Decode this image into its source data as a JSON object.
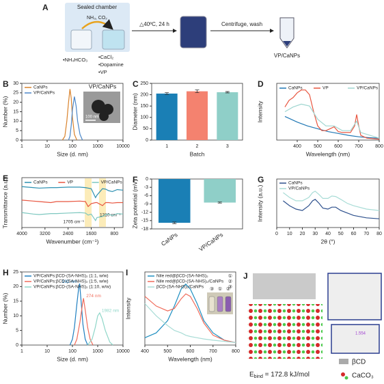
{
  "schematic": {
    "label": "A",
    "chamber_title": "Sealed chamber",
    "gas": "NH₃, CO₂",
    "left_reagents": [
      "•NH₄HCO₃"
    ],
    "right_reagents": [
      "•CaCl₂",
      "•Dopamine",
      "•VP"
    ],
    "step1": "△40ºC, 24 h",
    "step2": "Centrifuge, wash",
    "product": "VP/CaNPs"
  },
  "chart_data": [
    {
      "type": "line",
      "label": "B",
      "xscale": "log",
      "xlim": [
        1,
        10000
      ],
      "xticks": [
        1,
        10,
        100,
        1000,
        10000
      ],
      "ylim": [
        0,
        30
      ],
      "yticks": [
        0,
        5,
        10,
        15,
        20,
        25,
        30
      ],
      "xlabel": "Size (d. nm)",
      "ylabel": "Number (%)",
      "legend": "upper left",
      "inset_title": "VP/CaNPs",
      "scale_bar": "100 nm",
      "series": [
        {
          "name": "CaNPs",
          "color": "#d9822b",
          "x": [
            40,
            50,
            60,
            70,
            80,
            90,
            100,
            120,
            150
          ],
          "values": [
            0,
            2,
            10,
            20,
            27,
            22,
            12,
            3,
            0
          ]
        },
        {
          "name": "VP/CaNPs",
          "color": "#4a86c8",
          "x": [
            70,
            80,
            90,
            100,
            120,
            140,
            160,
            200,
            250
          ],
          "values": [
            0,
            2,
            8,
            16,
            23,
            18,
            10,
            3,
            0
          ]
        }
      ]
    },
    {
      "type": "bar",
      "label": "C",
      "categories": [
        "1",
        "2",
        "3"
      ],
      "values": [
        205,
        215,
        211
      ],
      "errors": [
        4,
        6,
        3
      ],
      "colors": [
        "#1a7fb5",
        "#f4826f",
        "#8fcfc8"
      ],
      "ylim": [
        0,
        250
      ],
      "yticks": [
        0,
        50,
        100,
        150,
        200,
        250
      ],
      "xlabel": "Batch",
      "ylabel": "Diameter (nm)"
    },
    {
      "type": "line",
      "label": "D",
      "xlim": [
        300,
        800
      ],
      "xticks": [
        400,
        500,
        600,
        700,
        800
      ],
      "ylim": [
        0,
        0.6
      ],
      "xlabel": "Wavelength (nm)",
      "ylabel": "Intensity",
      "legend": "upper center",
      "series": [
        {
          "name": "CaNPs",
          "color": "#1f77b4",
          "x": [
            340,
            400,
            450,
            500,
            550,
            600,
            650,
            700,
            750,
            800
          ],
          "values": [
            0.25,
            0.19,
            0.15,
            0.12,
            0.09,
            0.07,
            0.05,
            0.035,
            0.025,
            0.02
          ]
        },
        {
          "name": "VP",
          "color": "#e8553f",
          "x": [
            340,
            360,
            380,
            400,
            420,
            440,
            460,
            480,
            500,
            520,
            540,
            560,
            580,
            600,
            620,
            640,
            660,
            680,
            690,
            700,
            710,
            740,
            800
          ],
          "values": [
            0.35,
            0.42,
            0.45,
            0.5,
            0.53,
            0.53,
            0.48,
            0.3,
            0.15,
            0.1,
            0.1,
            0.12,
            0.14,
            0.09,
            0.08,
            0.08,
            0.08,
            0.15,
            0.27,
            0.15,
            0.05,
            0.02,
            0.01
          ]
        },
        {
          "name": "VP/CaNPs",
          "color": "#9fd6d0",
          "x": [
            340,
            380,
            420,
            460,
            500,
            540,
            580,
            620,
            660,
            690,
            710,
            800
          ],
          "values": [
            0.3,
            0.35,
            0.38,
            0.36,
            0.22,
            0.15,
            0.15,
            0.1,
            0.1,
            0.2,
            0.08,
            0.02
          ]
        }
      ]
    },
    {
      "type": "line",
      "label": "E",
      "xlim": [
        4000,
        500
      ],
      "xticks": [
        4000,
        3200,
        2400,
        1600,
        800
      ],
      "ylim": [
        0,
        1
      ],
      "xlabel": "Wavenumber (cm⁻¹)",
      "ylabel": "Transmittance (a.u.)",
      "legend": "upper center",
      "highlights": [
        1705,
        1210
      ],
      "annotations": [
        "1705 cm⁻¹",
        "1210 cm⁻¹"
      ],
      "x": [
        4000,
        3600,
        3400,
        3000,
        2800,
        2400,
        2000,
        1800,
        1705,
        1600,
        1450,
        1400,
        1210,
        1100,
        1000,
        870,
        700,
        500
      ],
      "series": [
        {
          "name": "CaNPs",
          "color": "#2a8fb0",
          "values": [
            0.82,
            0.8,
            0.79,
            0.8,
            0.8,
            0.81,
            0.81,
            0.8,
            0.79,
            0.78,
            0.6,
            0.65,
            0.78,
            0.77,
            0.74,
            0.72,
            0.76,
            0.75
          ]
        },
        {
          "name": "VP",
          "color": "#e8553f",
          "values": [
            0.55,
            0.53,
            0.52,
            0.5,
            0.52,
            0.52,
            0.53,
            0.52,
            0.42,
            0.48,
            0.5,
            0.5,
            0.44,
            0.5,
            0.5,
            0.49,
            0.5,
            0.5
          ]
        },
        {
          "name": "VP/CaNPs",
          "color": "#7cc7bf",
          "values": [
            0.3,
            0.27,
            0.26,
            0.28,
            0.28,
            0.29,
            0.3,
            0.29,
            0.25,
            0.27,
            0.14,
            0.2,
            0.22,
            0.26,
            0.27,
            0.24,
            0.28,
            0.27
          ]
        }
      ]
    },
    {
      "type": "bar",
      "label": "F",
      "categories": [
        "CaNPs",
        "VP/CaNPs"
      ],
      "values": [
        -15.8,
        -8.5
      ],
      "errors": [
        0.3,
        0.2
      ],
      "colors": [
        "#1a7fb5",
        "#8fcfc8"
      ],
      "ylim": [
        -18,
        0
      ],
      "yticks": [
        0,
        -3,
        -6,
        -9,
        -12,
        -15,
        -18
      ],
      "ylabel": "Zeta potential (mV)",
      "rotate_labels": true
    },
    {
      "type": "line",
      "label": "G",
      "xlim": [
        0,
        80
      ],
      "xticks": [
        0,
        10,
        20,
        30,
        40,
        50,
        60,
        70,
        80
      ],
      "ylim": [
        0,
        1
      ],
      "xlabel": "2θ (°)",
      "ylabel": "Intensity (a.u.)",
      "legend": "upper left",
      "x": [
        5,
        10,
        15,
        20,
        25,
        28,
        30,
        33,
        36,
        40,
        43,
        46,
        50,
        55,
        60,
        70,
        80
      ],
      "series": [
        {
          "name": "CaNPs",
          "color": "#2c4f8c",
          "values": [
            0.55,
            0.45,
            0.38,
            0.35,
            0.45,
            0.55,
            0.58,
            0.5,
            0.4,
            0.38,
            0.42,
            0.42,
            0.35,
            0.3,
            0.25,
            0.2,
            0.18
          ]
        },
        {
          "name": "VP/CaNPs",
          "color": "#a8dcd6",
          "values": [
            0.72,
            0.62,
            0.55,
            0.55,
            0.62,
            0.72,
            0.75,
            0.68,
            0.6,
            0.6,
            0.65,
            0.64,
            0.58,
            0.5,
            0.45,
            0.38,
            0.35
          ]
        }
      ]
    },
    {
      "type": "line",
      "label": "H",
      "xscale": "log",
      "xlim": [
        1,
        10000
      ],
      "xticks": [
        1,
        10,
        100,
        1000,
        10000
      ],
      "ylim": [
        0,
        25
      ],
      "yticks": [
        0,
        5,
        10,
        15,
        20,
        25
      ],
      "xlabel": "Size (d. nm)",
      "ylabel": "Number (%)",
      "legend": "upper left",
      "peak_labels": [
        "192 nm",
        "274 nm",
        "1982 nm"
      ],
      "series": [
        {
          "name": "VP/CaNPs:βCD-(SA-NHS)₂ (1:1, w/w)",
          "color": "#1f7fc1",
          "x": [
            80,
            100,
            120,
            150,
            180,
            192,
            220,
            260,
            320,
            400
          ],
          "values": [
            0,
            2,
            6,
            14,
            20,
            21,
            15,
            7,
            2,
            0
          ]
        },
        {
          "name": "VP/CaNPs:βCD-(SA-NHS)₂ (1:5, w/w)",
          "color": "#f06b5a",
          "x": [
            120,
            150,
            200,
            250,
            274,
            320,
            400,
            500,
            650
          ],
          "values": [
            0,
            2,
            8,
            14,
            16,
            12,
            6,
            2,
            0
          ]
        },
        {
          "name": "VP/CaNPs:βCD-(SA-NHS)₂ (1:10, w/w)",
          "color": "#8ed6c8",
          "x": [
            400,
            600,
            800,
            1000,
            1200,
            1500,
            2000,
            3000,
            4000
          ],
          "values": [
            0,
            2,
            6,
            10,
            11,
            9,
            5,
            1,
            0
          ]
        }
      ]
    },
    {
      "type": "line",
      "label": "I",
      "xlim": [
        400,
        800
      ],
      "xticks": [
        400,
        500,
        600,
        700,
        800
      ],
      "ylim": [
        0,
        0.3
      ],
      "xlabel": "Wavelength (nm)",
      "ylabel": "Intensity",
      "legend": "upper left",
      "inset_labels": [
        "③",
        "①",
        "②"
      ],
      "x": [
        400,
        450,
        500,
        530,
        560,
        580,
        600,
        630,
        660,
        700,
        750,
        800
      ],
      "series": [
        {
          "name": "Nile red@βCD-(SA-NHS)₂",
          "marker_label": "①",
          "color": "#1f8fc1",
          "values": [
            0.03,
            0.05,
            0.1,
            0.16,
            0.23,
            0.25,
            0.23,
            0.17,
            0.1,
            0.05,
            0.02,
            0.01
          ]
        },
        {
          "name": "Nile red@βCD-(SA-NHS)₂/CaNPs",
          "marker_label": "②",
          "color": "#f06b5a",
          "values": [
            0.2,
            0.16,
            0.14,
            0.15,
            0.19,
            0.21,
            0.2,
            0.15,
            0.09,
            0.04,
            0.02,
            0.01
          ]
        },
        {
          "name": "βCD-(SA-NHS)₂/CaNPs",
          "marker_label": "③",
          "color": "#a8dcd6",
          "values": [
            0.17,
            0.12,
            0.08,
            0.06,
            0.05,
            0.04,
            0.035,
            0.03,
            0.025,
            0.02,
            0.015,
            0.01
          ]
        }
      ]
    }
  ],
  "structure": {
    "label": "J",
    "energy_symbol": "E",
    "energy_sub": "bind",
    "energy_value": " = 172.8 kJ/mol",
    "distance": "1.554",
    "legend": [
      "βCD",
      "CaCO₃"
    ]
  }
}
